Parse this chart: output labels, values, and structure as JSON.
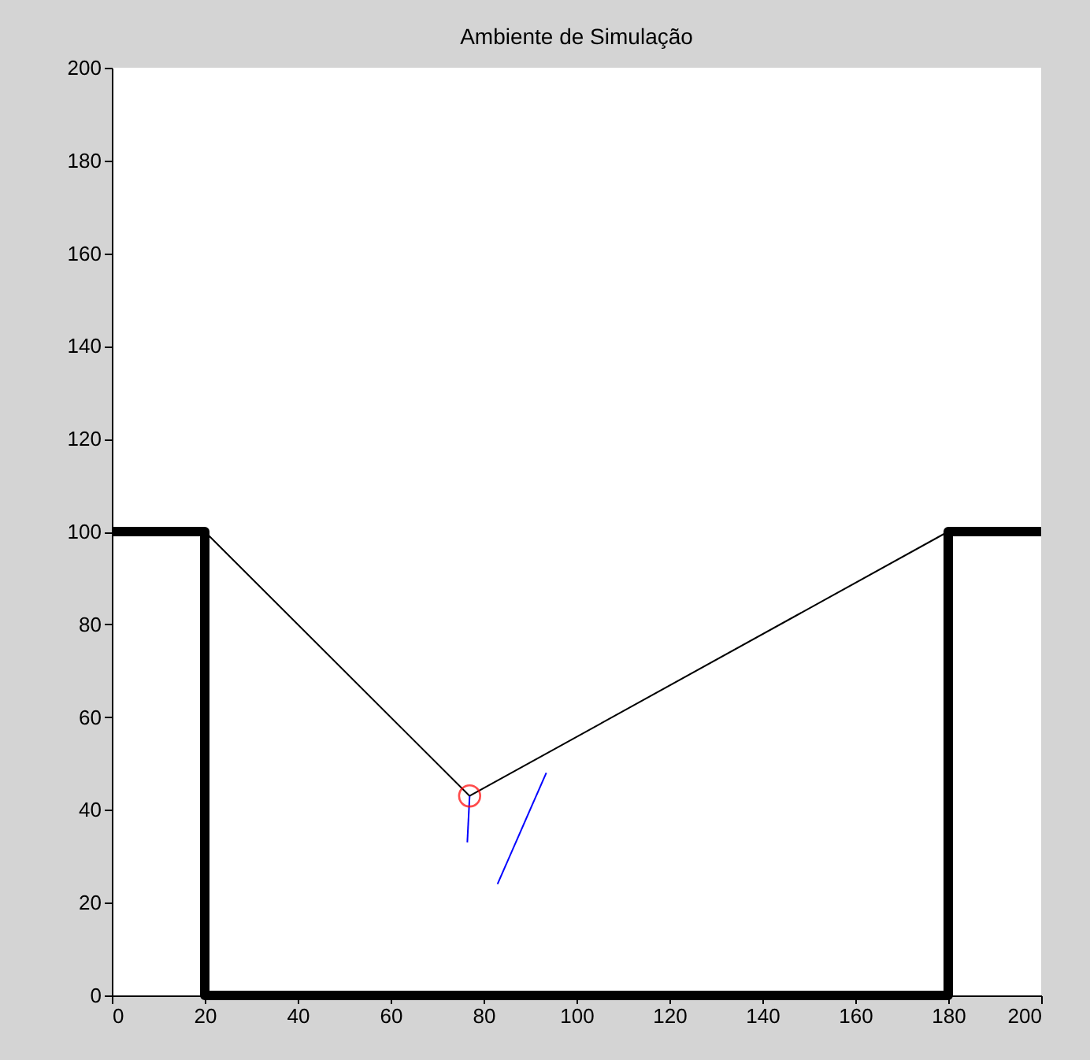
{
  "chart_data": {
    "type": "line",
    "title": "Ambiente de Simulação",
    "series": [
      {
        "color": "#000000",
        "x": [
          0,
          20,
          20,
          180,
          180,
          200
        ],
        "values": [
          100,
          100,
          0,
          0,
          100,
          100
        ]
      },
      {
        "color": "#000000",
        "x": [
          20,
          77,
          180
        ],
        "values": [
          100,
          43,
          100
        ]
      },
      {
        "type": "scatter",
        "marker": "circle",
        "color": "#ff0000",
        "x": [
          77
        ],
        "values": [
          43
        ]
      },
      {
        "color": "#0000ff",
        "x": [
          77,
          76.5
        ],
        "values": [
          43,
          33
        ]
      },
      {
        "color": "#0000ff",
        "x": [
          83,
          93.5
        ],
        "values": [
          24,
          48
        ]
      }
    ],
    "xlim": [
      0,
      200
    ],
    "xticks": [
      0,
      20,
      40,
      60,
      80,
      100,
      120,
      140,
      160,
      180,
      200
    ],
    "ylim": [
      0,
      200
    ],
    "yticks": [
      0,
      20,
      40,
      60,
      80,
      100,
      120,
      140,
      160,
      180,
      200
    ],
    "grid": false
  }
}
